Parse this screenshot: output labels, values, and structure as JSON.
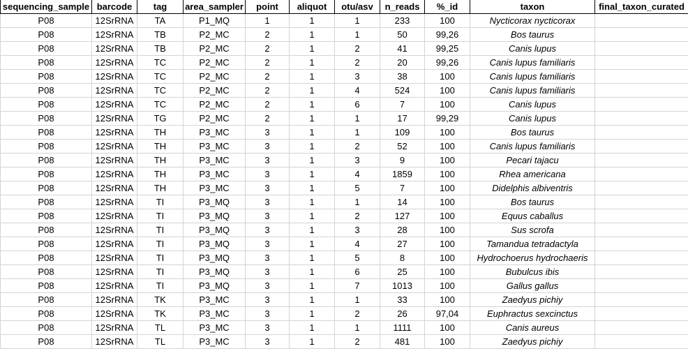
{
  "columns": [
    "sequencing_sample",
    "barcode",
    "tag",
    "area_sampler",
    "point",
    "aliquot",
    "otu/asv",
    "n_reads",
    "%_id",
    "taxon",
    "final_taxon_curated"
  ],
  "rows": [
    [
      "P08",
      "12SrRNA",
      "TA",
      "P1_MQ",
      "1",
      "1",
      "1",
      "233",
      "100",
      "Nycticorax nycticorax",
      ""
    ],
    [
      "P08",
      "12SrRNA",
      "TB",
      "P2_MC",
      "2",
      "1",
      "1",
      "50",
      "99,26",
      "Bos taurus",
      ""
    ],
    [
      "P08",
      "12SrRNA",
      "TB",
      "P2_MC",
      "2",
      "1",
      "2",
      "41",
      "99,25",
      "Canis lupus",
      ""
    ],
    [
      "P08",
      "12SrRNA",
      "TC",
      "P2_MC",
      "2",
      "1",
      "2",
      "20",
      "99,26",
      "Canis lupus familiaris",
      ""
    ],
    [
      "P08",
      "12SrRNA",
      "TC",
      "P2_MC",
      "2",
      "1",
      "3",
      "38",
      "100",
      "Canis lupus familiaris",
      ""
    ],
    [
      "P08",
      "12SrRNA",
      "TC",
      "P2_MC",
      "2",
      "1",
      "4",
      "524",
      "100",
      "Canis lupus familiaris",
      ""
    ],
    [
      "P08",
      "12SrRNA",
      "TC",
      "P2_MC",
      "2",
      "1",
      "6",
      "7",
      "100",
      "Canis lupus",
      ""
    ],
    [
      "P08",
      "12SrRNA",
      "TG",
      "P2_MC",
      "2",
      "1",
      "1",
      "17",
      "99,29",
      "Canis lupus",
      ""
    ],
    [
      "P08",
      "12SrRNA",
      "TH",
      "P3_MC",
      "3",
      "1",
      "1",
      "109",
      "100",
      "Bos taurus",
      ""
    ],
    [
      "P08",
      "12SrRNA",
      "TH",
      "P3_MC",
      "3",
      "1",
      "2",
      "52",
      "100",
      "Canis lupus familiaris",
      ""
    ],
    [
      "P08",
      "12SrRNA",
      "TH",
      "P3_MC",
      "3",
      "1",
      "3",
      "9",
      "100",
      "Pecari tajacu",
      ""
    ],
    [
      "P08",
      "12SrRNA",
      "TH",
      "P3_MC",
      "3",
      "1",
      "4",
      "1859",
      "100",
      "Rhea americana",
      ""
    ],
    [
      "P08",
      "12SrRNA",
      "TH",
      "P3_MC",
      "3",
      "1",
      "5",
      "7",
      "100",
      "Didelphis albiventris",
      ""
    ],
    [
      "P08",
      "12SrRNA",
      "TI",
      "P3_MQ",
      "3",
      "1",
      "1",
      "14",
      "100",
      "Bos taurus",
      ""
    ],
    [
      "P08",
      "12SrRNA",
      "TI",
      "P3_MQ",
      "3",
      "1",
      "2",
      "127",
      "100",
      "Equus caballus",
      ""
    ],
    [
      "P08",
      "12SrRNA",
      "TI",
      "P3_MQ",
      "3",
      "1",
      "3",
      "28",
      "100",
      "Sus scrofa",
      ""
    ],
    [
      "P08",
      "12SrRNA",
      "TI",
      "P3_MQ",
      "3",
      "1",
      "4",
      "27",
      "100",
      "Tamandua tetradactyla",
      ""
    ],
    [
      "P08",
      "12SrRNA",
      "TI",
      "P3_MQ",
      "3",
      "1",
      "5",
      "8",
      "100",
      "Hydrochoerus hydrochaeris",
      ""
    ],
    [
      "P08",
      "12SrRNA",
      "TI",
      "P3_MQ",
      "3",
      "1",
      "6",
      "25",
      "100",
      "Bubulcus ibis",
      ""
    ],
    [
      "P08",
      "12SrRNA",
      "TI",
      "P3_MQ",
      "3",
      "1",
      "7",
      "1013",
      "100",
      "Gallus gallus",
      ""
    ],
    [
      "P08",
      "12SrRNA",
      "TK",
      "P3_MC",
      "3",
      "1",
      "1",
      "33",
      "100",
      "Zaedyus pichiy",
      ""
    ],
    [
      "P08",
      "12SrRNA",
      "TK",
      "P3_MC",
      "3",
      "1",
      "2",
      "26",
      "97,04",
      "Euphractus sexcinctus",
      ""
    ],
    [
      "P08",
      "12SrRNA",
      "TL",
      "P3_MC",
      "3",
      "1",
      "1",
      "1111",
      "100",
      "Canis aureus",
      ""
    ],
    [
      "P08",
      "12SrRNA",
      "TL",
      "P3_MC",
      "3",
      "1",
      "2",
      "481",
      "100",
      "Zaedyus pichiy",
      ""
    ]
  ]
}
